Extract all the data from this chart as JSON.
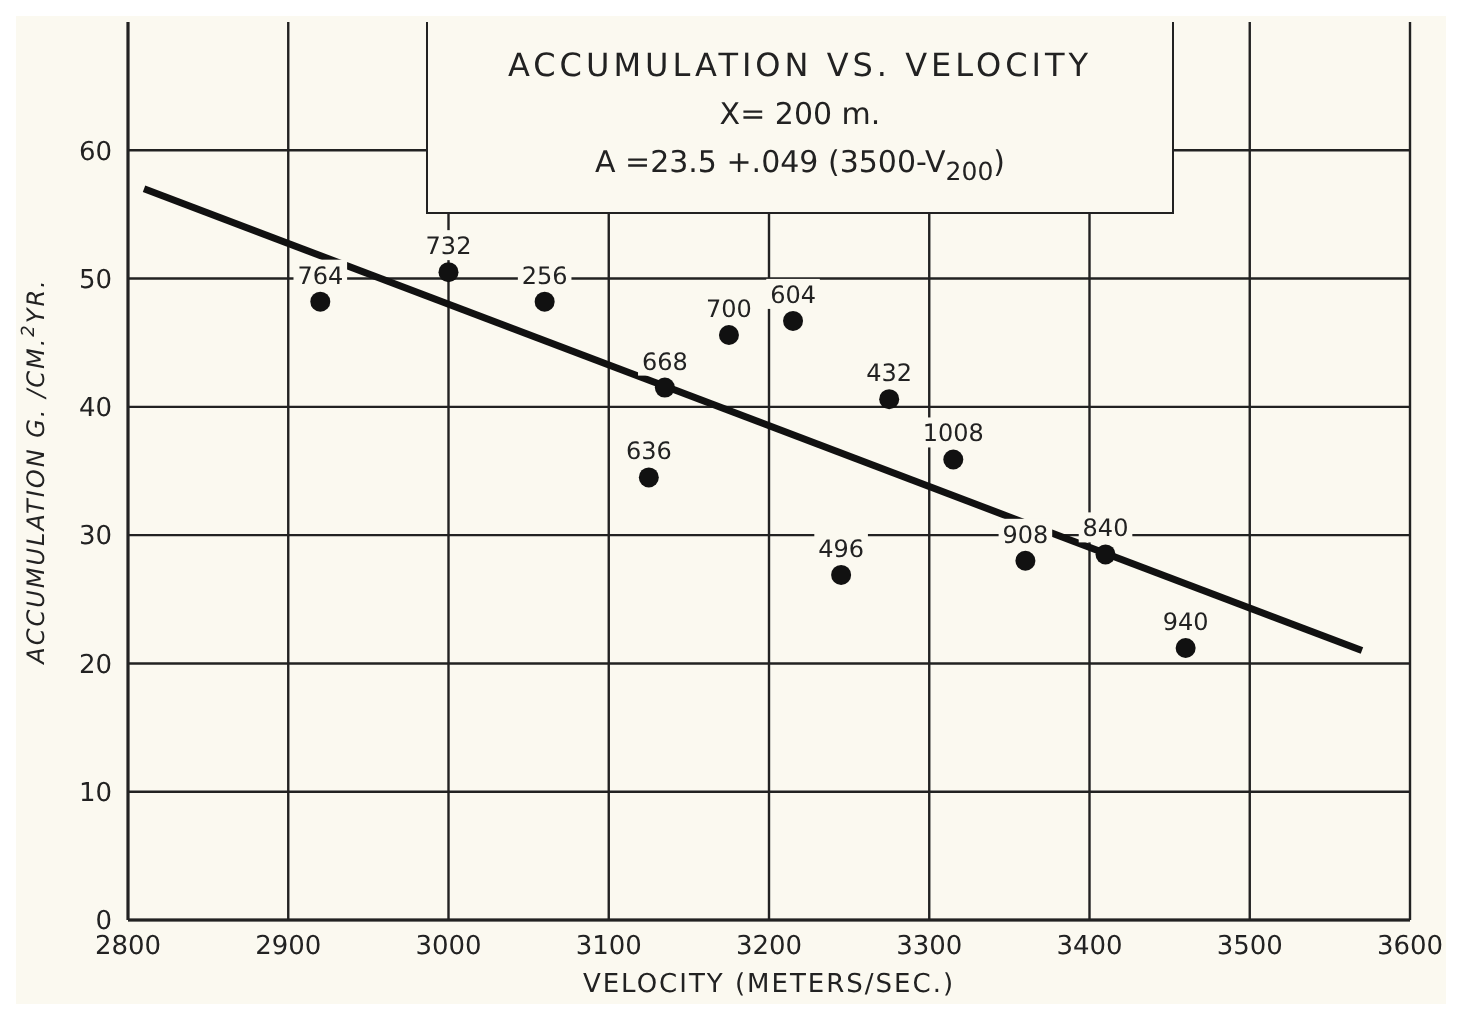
{
  "chart_data": {
    "type": "scatter",
    "title": "ACCUMULATION VS. VELOCITY",
    "subtitle": "X= 200 m.",
    "xlabel": "VELOCITY (METERS/SEC.)",
    "ylabel": "ACCUMULATION G. /CM.$^{2}$YR.",
    "annotations": [
      "A =23.5 +.049 (3500-V$_{200}$)",
      {
        "text": "764",
        "x": 2920,
        "y": 48.2
      },
      {
        "text": "732",
        "x": 3000,
        "y": 50.5
      },
      {
        "text": "256",
        "x": 3060,
        "y": 48.2
      },
      {
        "text": "668",
        "x": 3135,
        "y": 41.5
      },
      {
        "text": "636",
        "x": 3125,
        "y": 34.5
      },
      {
        "text": "700",
        "x": 3175,
        "y": 45.6
      },
      {
        "text": "604",
        "x": 3215,
        "y": 46.7
      },
      {
        "text": "432",
        "x": 3275,
        "y": 40.6
      },
      {
        "text": "1008",
        "x": 3315,
        "y": 35.9
      },
      {
        "text": "496",
        "x": 3245,
        "y": 26.9
      },
      {
        "text": "908",
        "x": 3360,
        "y": 28.0
      },
      {
        "text": "840",
        "x": 3410,
        "y": 28.5
      },
      {
        "text": "940",
        "x": 3460,
        "y": 21.2
      }
    ],
    "series": [
      {
        "marker": "circle",
        "color": "#111111",
        "x": [
          2920,
          3000,
          3060,
          3135,
          3125,
          3175,
          3215,
          3275,
          3315,
          3245,
          3360,
          3410,
          3460
        ],
        "values": [
          48.2,
          50.5,
          48.2,
          41.5,
          34.5,
          45.6,
          46.7,
          40.6,
          35.9,
          26.9,
          28.0,
          28.5,
          21.2
        ]
      },
      {
        "type": "line",
        "color": "#111111",
        "x": [
          2810,
          3570
        ],
        "values": [
          57,
          21
        ]
      }
    ],
    "xlim": [
      2800,
      3600
    ],
    "xticks": [
      2800,
      2900,
      3000,
      3100,
      3200,
      3300,
      3400,
      3500,
      3600
    ],
    "ylim": [
      0,
      70
    ],
    "yticks": [
      0,
      10,
      20,
      30,
      40,
      50,
      60
    ],
    "grid": true,
    "legend": false
  }
}
